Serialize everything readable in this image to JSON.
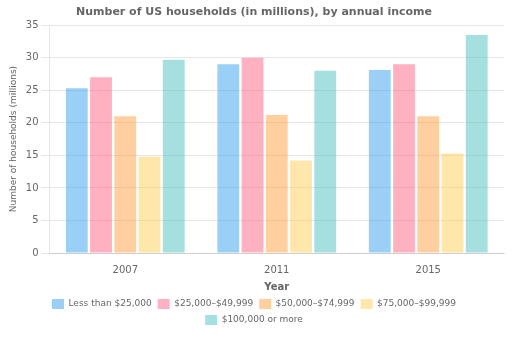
{
  "chart_data": {
    "type": "bar",
    "title": "Number of US households (in millions), by annual income",
    "xlabel": "Year",
    "ylabel": "Number of households (millions)",
    "categories": [
      "2007",
      "2011",
      "2015"
    ],
    "series": [
      {
        "name": "Less than $25,000",
        "values": [
          25.3,
          29.0,
          28.1
        ]
      },
      {
        "name": "$25,000–$49,999",
        "values": [
          27.0,
          30.0,
          29.0
        ]
      },
      {
        "name": "$50,000–$74,999",
        "values": [
          21.0,
          21.2,
          21.0
        ]
      },
      {
        "name": "$75,000–$99,999",
        "values": [
          14.8,
          14.2,
          15.3
        ]
      },
      {
        "name": "$100,000 or more",
        "values": [
          29.7,
          28.0,
          33.5
        ]
      }
    ],
    "ylim": [
      0,
      35
    ],
    "yticks": [
      0,
      5,
      10,
      15,
      20,
      25,
      30,
      35
    ],
    "grid": true,
    "legend": "bottom"
  }
}
